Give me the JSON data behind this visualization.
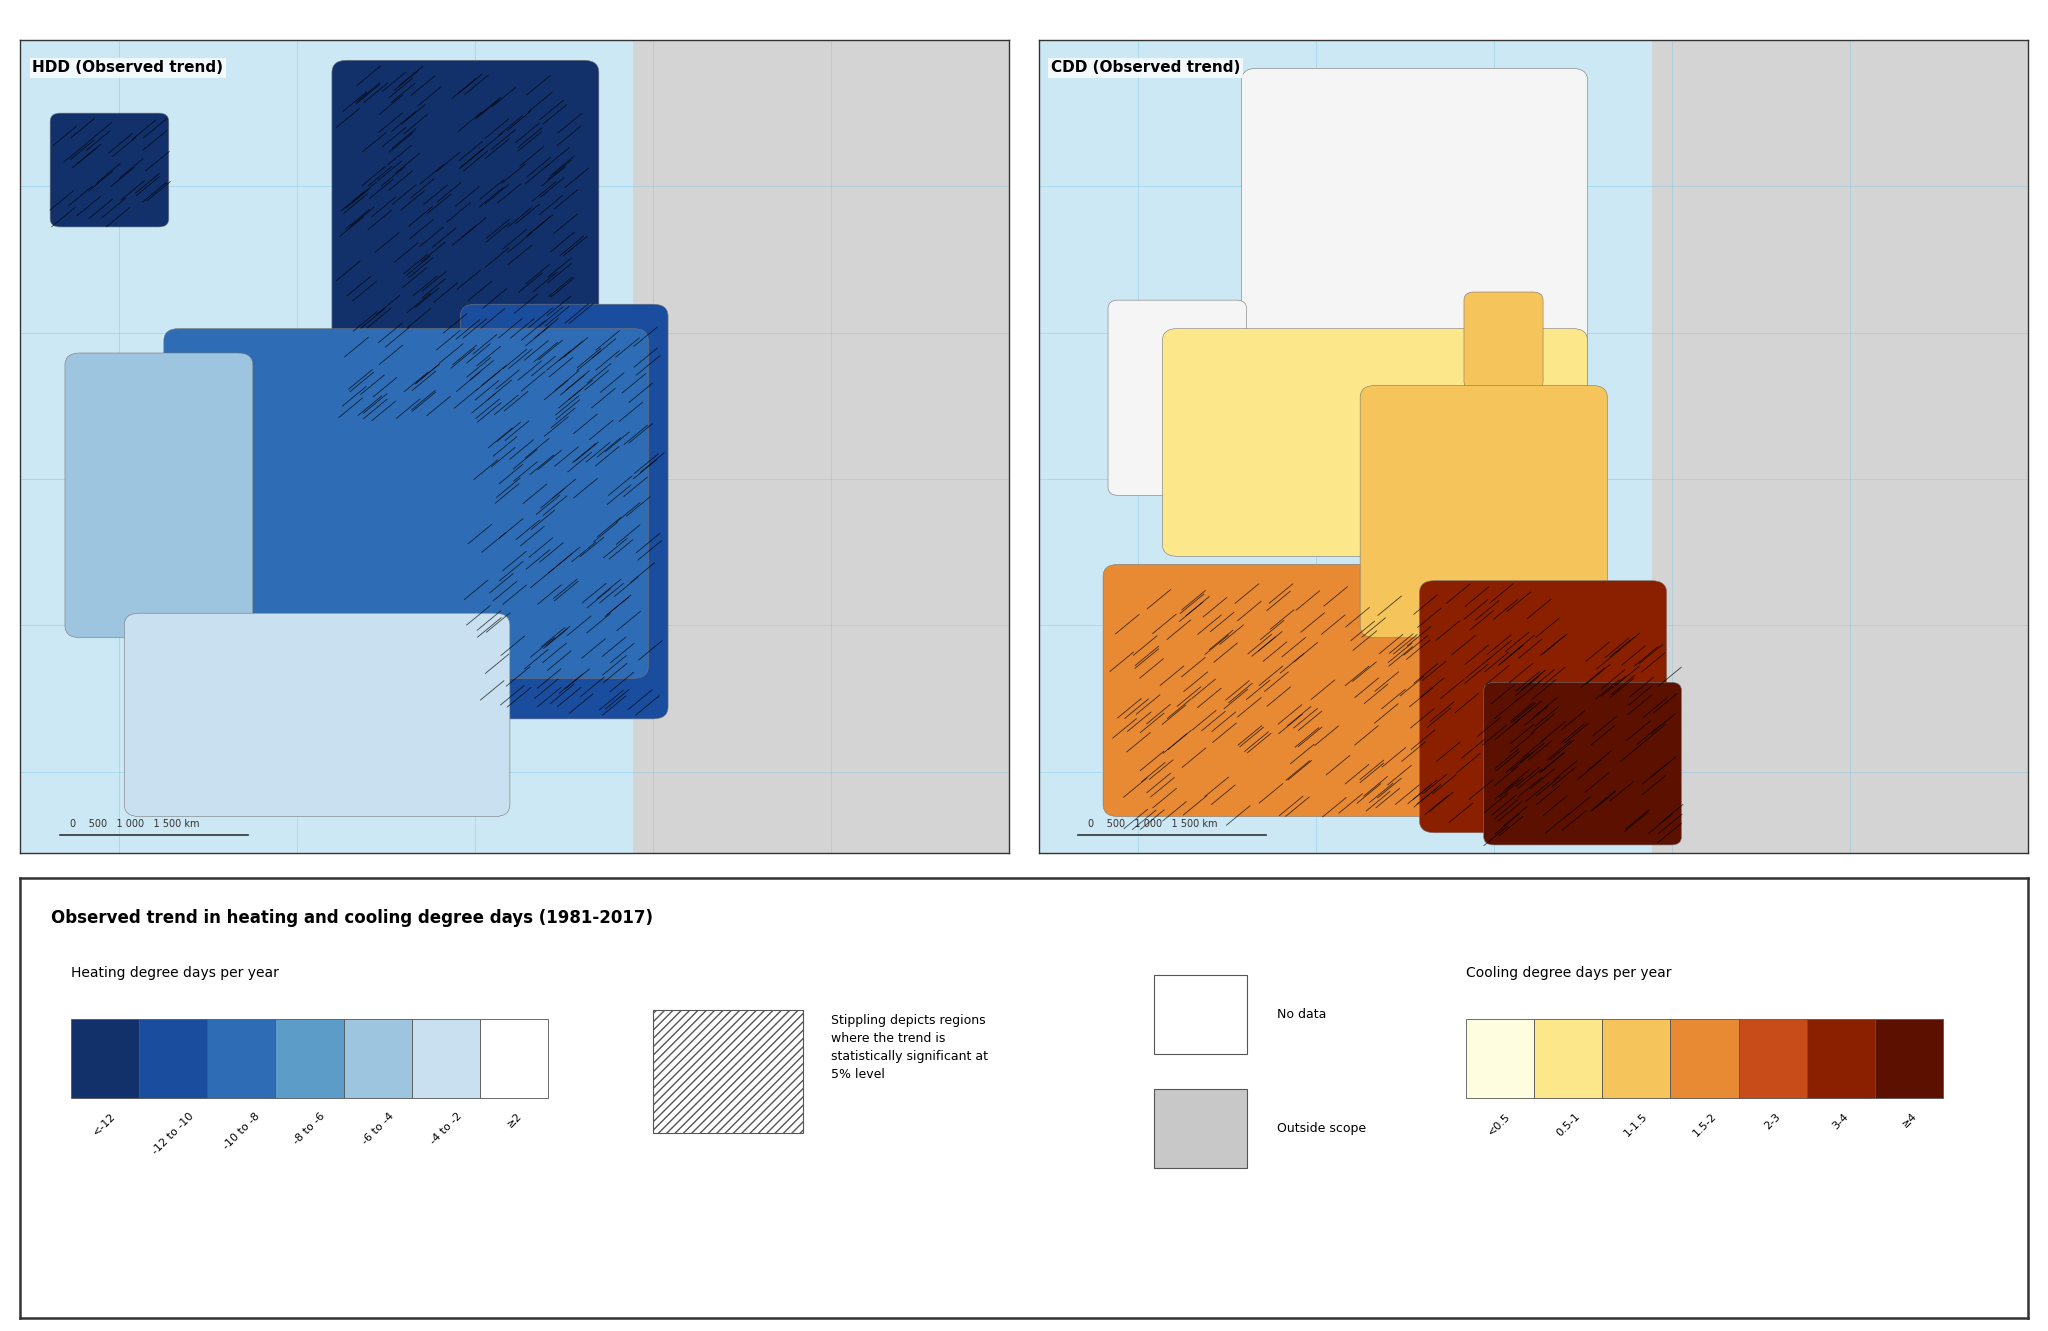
{
  "title": "Observed trend in heating and cooling degree days (1981-2017)",
  "left_map_title": "HDD (Observed trend)",
  "right_map_title": "CDD (Observed trend)",
  "hdd_label": "Heating degree days per year",
  "cdd_label": "Cooling degree days per year",
  "hdd_colors": [
    "#12316b",
    "#1a4d9e",
    "#2e6db5",
    "#5b9dc8",
    "#9ec5e0",
    "#c9e0f0",
    "#ffffff"
  ],
  "hdd_labels": [
    "<-12",
    "-12 to -10",
    "-10 to -8",
    "-8 to -6",
    "-6 to -4",
    "-4 to -2",
    "≥2"
  ],
  "cdd_colors": [
    "#fffde0",
    "#fce88a",
    "#f5c45a",
    "#e88933",
    "#c84b1a",
    "#8b2000",
    "#5c1000"
  ],
  "cdd_labels": [
    "<0.5",
    "0.5-1",
    "1-1.5",
    "1.5-2",
    "2-3",
    "3-4",
    "≥4"
  ],
  "stippling_text": "Stippling depicts regions\nwhere the trend is\nstatistically significant at\n5% level",
  "no_data_color": "#ffffff",
  "outside_scope_color": "#c8c8c8",
  "map_ocean_color": "#cce8f4",
  "map_land_outside_color": "#d4d4d4",
  "legend_bg": "#ffffff",
  "border_color": "#333333",
  "scale_bar_text": "0    500   1 000   1 500 km",
  "fig_width": 20.48,
  "fig_height": 13.31
}
